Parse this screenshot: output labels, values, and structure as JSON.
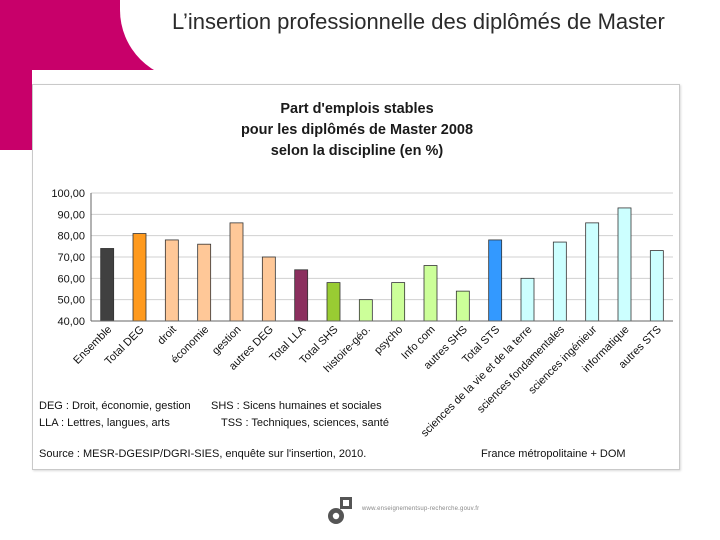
{
  "slide": {
    "title": "L’insertion professionnelle des diplômés de Master",
    "footer_url": "www.enseignementsup-recherche.gouv.fr"
  },
  "colors": {
    "brand": "#c8006a",
    "grid": "#d0d0d0",
    "axis": "#666666"
  },
  "chart_data": {
    "type": "bar",
    "title": [
      "Part d'emplois stables",
      "pour les diplômés de Master 2008",
      "selon la discipline (en %)"
    ],
    "xlabel": "",
    "ylabel": "",
    "ylim": [
      40,
      100
    ],
    "yticks": [
      "40,00",
      "50,00",
      "60,00",
      "70,00",
      "80,00",
      "90,00",
      "100,00"
    ],
    "grid": true,
    "categories": [
      "Ensemble",
      "Total DEG",
      "droit",
      "économie",
      "gestion",
      "autres DEG",
      "Total LLA",
      "Total SHS",
      "histoire-géo.",
      "psycho",
      "Info com",
      "autres SHS",
      "Total STS",
      "sciences de la vie et de la terre",
      "sciences fondamentales",
      "sciences ingénieur",
      "informatique",
      "autres STS"
    ],
    "values": [
      74,
      81,
      78,
      76,
      86,
      70,
      64,
      58,
      50,
      58,
      66,
      54,
      78,
      60,
      77,
      86,
      93,
      73
    ],
    "bar_colors": [
      "#404040",
      "#ff9a1e",
      "#ffc898",
      "#ffc898",
      "#ffc898",
      "#ffc898",
      "#8b2f5e",
      "#99cc33",
      "#ccff99",
      "#ccff99",
      "#ccff99",
      "#ccff99",
      "#3399ff",
      "#ccffff",
      "#ccffff",
      "#ccffff",
      "#ccffff",
      "#ccffff"
    ],
    "notes": {
      "deg": "DEG : Droit, économie, gestion",
      "lla": "LLA : Lettres, langues, arts",
      "shs": "SHS : Sicens humaines et sociales",
      "tss": "TSS : Techniques, sciences, santé",
      "source": "Source : MESR-DGESIP/DGRI-SIES, enquête sur l'insertion, 2010.",
      "region": "France métropolitaine + DOM"
    }
  }
}
